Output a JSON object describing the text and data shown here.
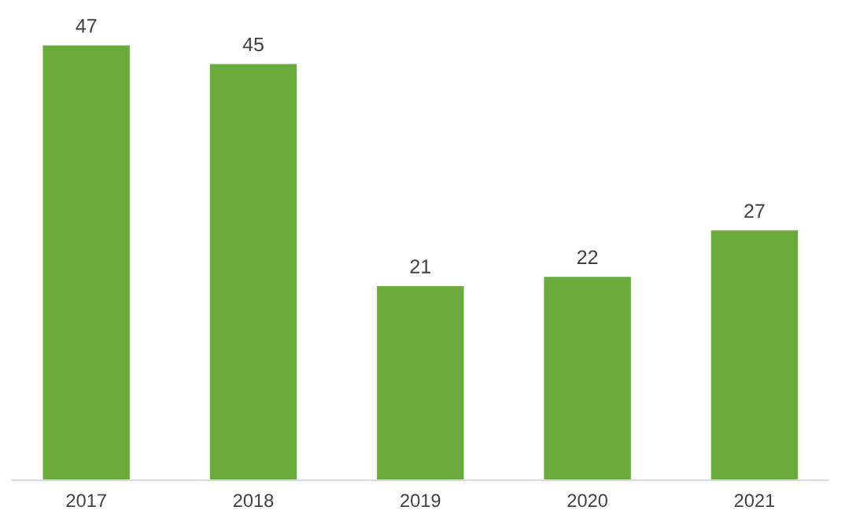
{
  "chart_data": {
    "type": "bar",
    "categories": [
      "2017",
      "2018",
      "2019",
      "2020",
      "2021"
    ],
    "values": [
      47,
      45,
      21,
      22,
      27
    ],
    "color": "#6aab3c",
    "data_labels": true
  }
}
